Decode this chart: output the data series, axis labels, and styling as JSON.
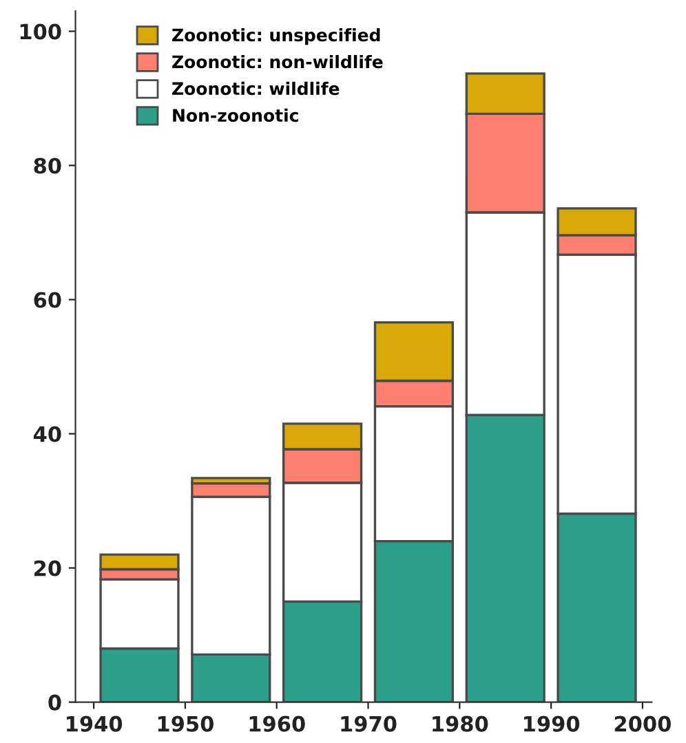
{
  "chart_data": {
    "type": "bar",
    "stacked": true,
    "x": [
      1945,
      1955,
      1965,
      1975,
      1985,
      1995
    ],
    "series": [
      {
        "name": "Non-zoonotic",
        "color": "#2aa08a",
        "values": [
          8,
          7.1,
          15,
          24,
          42.8,
          28.1
        ]
      },
      {
        "name": "Zoonotic: wildlife",
        "color": "#ffffff",
        "values": [
          10.3,
          23.5,
          17.7,
          20.1,
          30.2,
          38.6
        ]
      },
      {
        "name": "Zoonotic: non-wildlife",
        "color": "#fd7f6f",
        "values": [
          1.5,
          2,
          5,
          3.8,
          14.7,
          2.9
        ]
      },
      {
        "name": "Zoonotic: unspecified",
        "color": "#d8a806",
        "values": [
          2.2,
          0.8,
          3.8,
          8.7,
          6,
          4
        ]
      }
    ],
    "xlim": [
      1938,
      2001
    ],
    "xticks": [
      1940,
      1950,
      1960,
      1970,
      1980,
      1990,
      2000
    ],
    "ylim": [
      0,
      103
    ],
    "yticks": [
      0,
      20,
      40,
      60,
      80,
      100
    ],
    "legend": "top left"
  }
}
